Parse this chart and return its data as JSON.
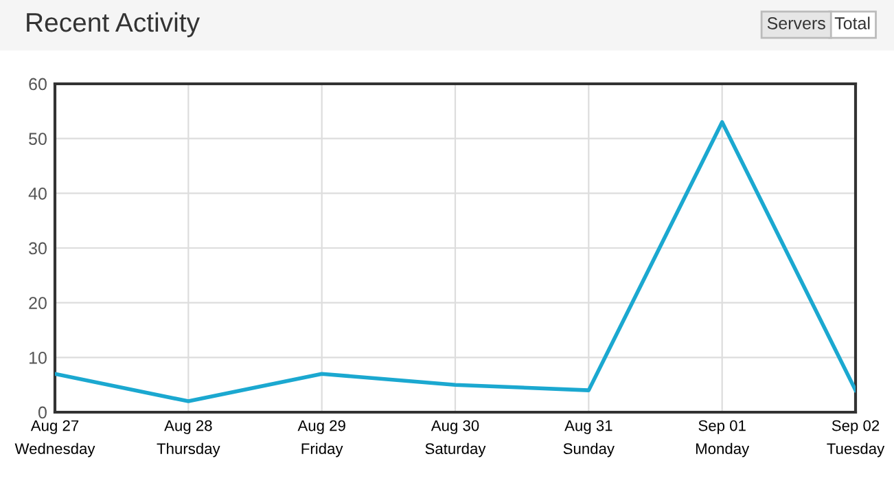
{
  "chart_data": {
    "type": "line",
    "title": "Recent Activity",
    "annotations": [
      "Servers",
      "Total"
    ],
    "categories": [
      "Aug 27\nWednesday",
      "Aug 28\nThursday",
      "Aug 29\nFriday",
      "Aug 30\nSaturday",
      "Aug 31\nSunday",
      "Sep 01\nMonday",
      "Sep 02\nTuesday"
    ],
    "series": [
      {
        "color": "#1ba8d0",
        "values": [
          7,
          2,
          7,
          5,
          4,
          53,
          4
        ]
      }
    ],
    "ylim": [
      0,
      60
    ],
    "yticks": [
      0,
      10,
      20,
      30,
      40,
      50,
      60
    ],
    "grid": true,
    "marker": "none",
    "line_style": "solid"
  }
}
